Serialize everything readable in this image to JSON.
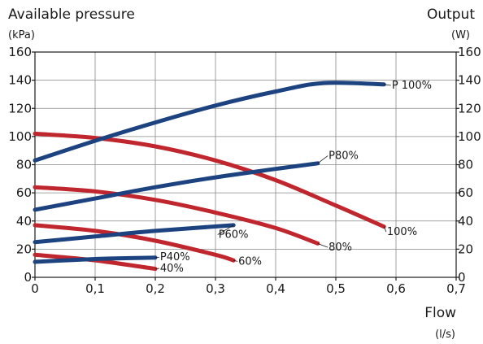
{
  "chart_data": {
    "type": "line",
    "title_left": "Available pressure",
    "unit_left": "(kPa)",
    "title_right": "Output",
    "unit_right": "(W)",
    "xlabel": "Flow",
    "xunit": "(l/s)",
    "xlim": [
      0,
      0.7
    ],
    "ylim": [
      0,
      160
    ],
    "y2lim": [
      0,
      160
    ],
    "x_ticks": [
      0,
      0.1,
      0.2,
      0.3,
      0.4,
      0.5,
      0.6,
      0.7
    ],
    "x_tick_labels": [
      "0",
      "0,1",
      "0,2",
      "0,3",
      "0,4",
      "0,5",
      "0,6",
      "0,7"
    ],
    "y_ticks": [
      0,
      20,
      40,
      60,
      80,
      100,
      120,
      140,
      160
    ],
    "y_tick_labels": [
      "0",
      "20",
      "40",
      "60",
      "80",
      "100",
      "120",
      "140",
      "160"
    ],
    "grid": true,
    "colors": {
      "pressure": "#c0262d",
      "output": "#1c4380"
    },
    "series": [
      {
        "name": "100%",
        "kind": "pressure",
        "points": [
          [
            0,
            102
          ],
          [
            0.1,
            99
          ],
          [
            0.2,
            93
          ],
          [
            0.3,
            83
          ],
          [
            0.4,
            69
          ],
          [
            0.5,
            51
          ],
          [
            0.58,
            36
          ]
        ],
        "label_at": [
          0.585,
          30
        ]
      },
      {
        "name": "80%",
        "kind": "pressure",
        "points": [
          [
            0,
            64
          ],
          [
            0.1,
            61
          ],
          [
            0.2,
            55
          ],
          [
            0.3,
            46
          ],
          [
            0.4,
            35
          ],
          [
            0.47,
            24
          ]
        ],
        "label_at": [
          0.488,
          19
        ]
      },
      {
        "name": "60%",
        "kind": "pressure",
        "points": [
          [
            0,
            37
          ],
          [
            0.1,
            33
          ],
          [
            0.2,
            26
          ],
          [
            0.3,
            16
          ],
          [
            0.33,
            12
          ]
        ],
        "label_at": [
          0.338,
          9
        ]
      },
      {
        "name": "40%",
        "kind": "pressure",
        "points": [
          [
            0,
            16
          ],
          [
            0.1,
            12
          ],
          [
            0.2,
            6
          ]
        ],
        "label_at": [
          0.208,
          4
        ]
      },
      {
        "name": "P 100%",
        "kind": "output",
        "points": [
          [
            0,
            83
          ],
          [
            0.1,
            97
          ],
          [
            0.2,
            110
          ],
          [
            0.3,
            122
          ],
          [
            0.4,
            132
          ],
          [
            0.48,
            138
          ],
          [
            0.58,
            137
          ]
        ],
        "label_at": [
          0.593,
          134
        ]
      },
      {
        "name": "P80%",
        "kind": "output",
        "points": [
          [
            0,
            48
          ],
          [
            0.1,
            56
          ],
          [
            0.2,
            64
          ],
          [
            0.3,
            71
          ],
          [
            0.4,
            77
          ],
          [
            0.47,
            81
          ]
        ],
        "label_at": [
          0.488,
          84
        ]
      },
      {
        "name": "P60%",
        "kind": "output",
        "points": [
          [
            0,
            25
          ],
          [
            0.1,
            29
          ],
          [
            0.2,
            33
          ],
          [
            0.33,
            37
          ]
        ],
        "label_at": [
          0.305,
          28
        ]
      },
      {
        "name": "P40%",
        "kind": "output",
        "points": [
          [
            0,
            11
          ],
          [
            0.1,
            13
          ],
          [
            0.2,
            14
          ]
        ],
        "label_at": [
          0.208,
          12
        ]
      }
    ]
  }
}
